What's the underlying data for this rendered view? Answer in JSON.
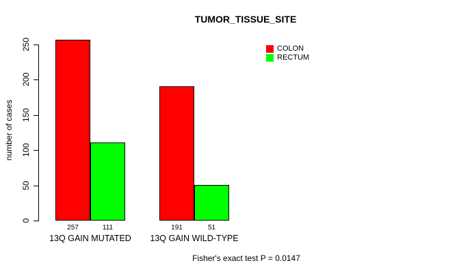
{
  "chart_data": {
    "type": "bar",
    "title": "TUMOR_TISSUE_SITE",
    "ylabel": "number of cases",
    "xlabel": "",
    "categories": [
      "13Q GAIN MUTATED",
      "13Q GAIN WILD-TYPE"
    ],
    "series": [
      {
        "name": "COLON",
        "color": "#ff0000",
        "values": [
          257,
          191
        ]
      },
      {
        "name": "RECTUM",
        "color": "#00ff00",
        "values": [
          111,
          51
        ]
      }
    ],
    "bar_value_labels": [
      [
        "257",
        "111"
      ],
      [
        "191",
        "51"
      ]
    ],
    "yticks": [
      0,
      50,
      100,
      150,
      200,
      250
    ],
    "ylim": [
      0,
      250
    ],
    "grid": false,
    "legend_position": "top-right",
    "legend_entries": [
      "COLON",
      "RECTUM"
    ],
    "footer": "Fisher's exact test P = 0.0147"
  }
}
